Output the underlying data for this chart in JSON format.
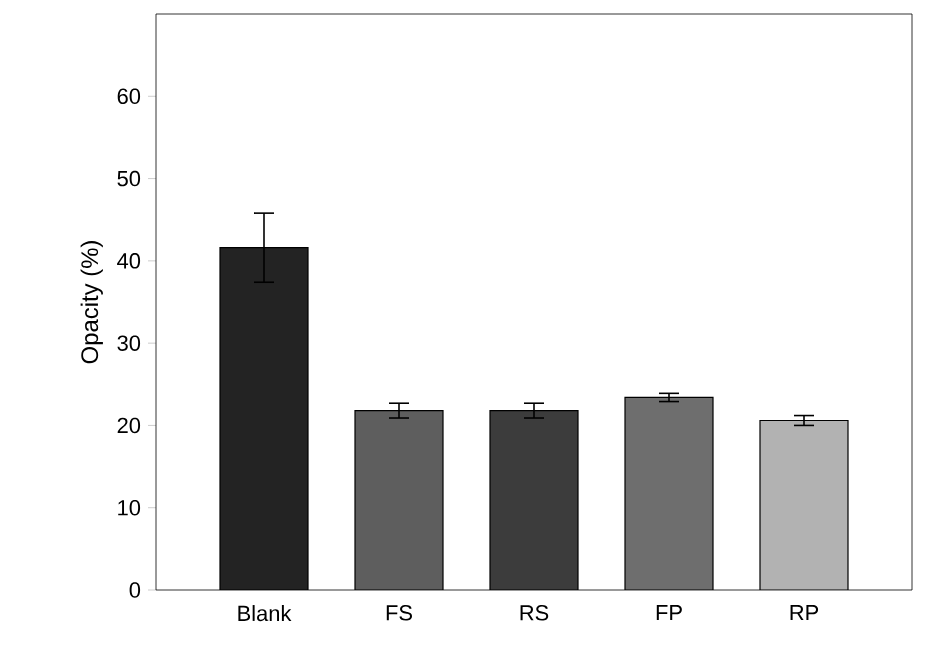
{
  "chart_data": {
    "type": "bar",
    "ylabel": "Opacity (%)",
    "categories": [
      "Blank",
      "FS",
      "RS",
      "FP",
      "RP"
    ],
    "values": [
      41.6,
      21.8,
      21.8,
      23.4,
      20.6
    ],
    "errors": [
      4.2,
      0.9,
      0.9,
      0.5,
      0.6
    ],
    "colors": [
      "#232323",
      "#5e5e5e",
      "#3c3c3c",
      "#6e6e6e",
      "#b2b2b2"
    ],
    "ylim": [
      0,
      70
    ],
    "yticks": [
      0,
      10,
      20,
      30,
      40,
      50,
      60
    ],
    "grid": false
  }
}
